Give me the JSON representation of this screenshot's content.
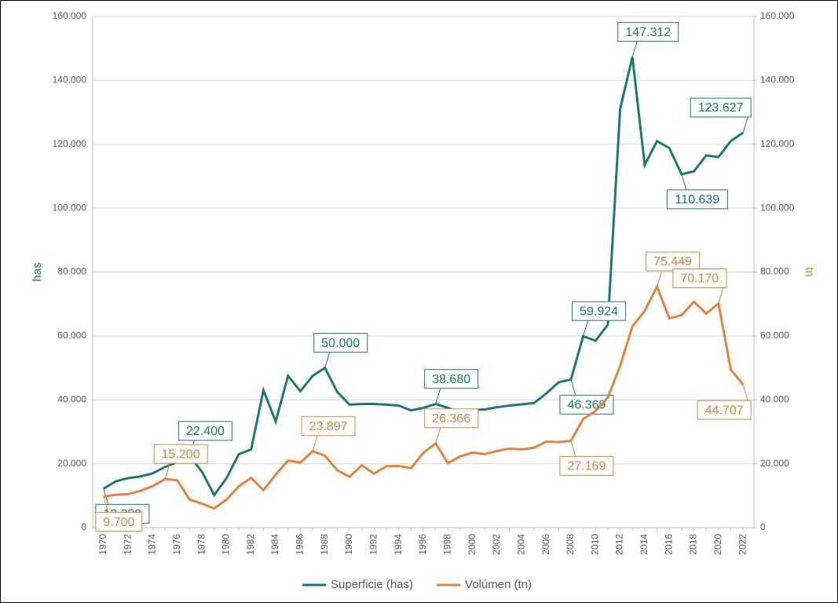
{
  "chart_data": {
    "type": "line",
    "categories": [
      1970,
      null,
      1972,
      null,
      1974,
      null,
      1976,
      null,
      1978,
      null,
      1980,
      null,
      1982,
      null,
      1984,
      null,
      1986,
      null,
      1988,
      null,
      1990,
      null,
      1992,
      null,
      1994,
      null,
      1996,
      null,
      1998,
      null,
      2000,
      null,
      2002,
      null,
      2004,
      null,
      2006,
      null,
      2008,
      null,
      2010,
      null,
      2012,
      null,
      2014,
      null,
      2016,
      null,
      2018,
      null,
      2020,
      null,
      2022
    ],
    "series": [
      {
        "name": "Superficie (has)",
        "color": "#1a7a72",
        "values": [
          12200,
          14500,
          15500,
          16000,
          17000,
          19000,
          20500,
          22400,
          17500,
          10200,
          15500,
          23000,
          24500,
          43000,
          33200,
          47500,
          42700,
          47500,
          50000,
          42500,
          38500,
          38700,
          38700,
          38500,
          38200,
          36700,
          37500,
          38680,
          37500,
          36000,
          36800,
          37000,
          37700,
          38200,
          38600,
          39000,
          42000,
          45500,
          46369,
          59924,
          58500,
          63500,
          131000,
          147312,
          113500,
          121000,
          118800,
          110639,
          111500,
          116500,
          116000,
          121000,
          123627
        ],
        "value_labels": [
          "12.200",
          null,
          null,
          null,
          null,
          null,
          null,
          "22.400",
          null,
          null,
          null,
          null,
          null,
          null,
          null,
          null,
          null,
          null,
          "50.000",
          null,
          null,
          null,
          null,
          null,
          null,
          null,
          null,
          "38.680",
          null,
          null,
          null,
          null,
          null,
          null,
          null,
          null,
          null,
          null,
          "46.369",
          "59.924",
          null,
          null,
          null,
          "147.312",
          null,
          null,
          null,
          "110.639",
          null,
          null,
          null,
          null,
          "123.627"
        ]
      },
      {
        "name": "Volúmen (tn)",
        "color": "#e8823a",
        "axis": "y2",
        "values": [
          9700,
          10300,
          10500,
          11500,
          13000,
          15200,
          14800,
          8800,
          7500,
          6000,
          8800,
          12900,
          15600,
          11700,
          16600,
          21000,
          20300,
          23897,
          22500,
          18000,
          15900,
          19500,
          16900,
          19200,
          19300,
          18600,
          23400,
          26366,
          20200,
          22300,
          23500,
          23000,
          24000,
          24700,
          24500,
          25000,
          26900,
          26800,
          27169,
          34000,
          36500,
          40700,
          50600,
          63000,
          67800,
          75449,
          65500,
          66500,
          70700,
          67000,
          70170,
          49500,
          44707
        ],
        "value_labels": [
          "9.700",
          null,
          null,
          null,
          null,
          "15.200",
          null,
          null,
          null,
          null,
          null,
          null,
          null,
          null,
          null,
          null,
          null,
          "23.897",
          null,
          null,
          null,
          null,
          null,
          null,
          null,
          null,
          null,
          "26.366",
          null,
          null,
          null,
          null,
          null,
          null,
          null,
          null,
          null,
          null,
          "27.169",
          null,
          null,
          null,
          null,
          null,
          null,
          "75.449",
          null,
          null,
          null,
          null,
          "70.170",
          null,
          "44.707"
        ]
      }
    ],
    "y_label": "has",
    "y2_label": "tn",
    "ylim": [
      0,
      160000
    ],
    "yticks": [
      0,
      {
        "value": 20000,
        "label": "20.000"
      },
      {
        "value": 40000,
        "label": "40.000"
      },
      {
        "value": 60000,
        "label": "60.000"
      },
      {
        "value": 80000,
        "label": "80.000"
      },
      {
        "value": 100000,
        "label": "100.000"
      },
      {
        "value": 120000,
        "label": "120.000"
      },
      {
        "value": 140000,
        "label": "140.000"
      },
      {
        "value": 160000,
        "label": "160.000"
      }
    ],
    "y2lim": [
      0,
      160000
    ],
    "y2ticks": [
      0,
      {
        "value": 20000,
        "label": "20.000"
      },
      {
        "value": 40000,
        "label": "40.000"
      },
      {
        "value": 60000,
        "label": "60.000"
      },
      {
        "value": 80000,
        "label": "80.000"
      },
      {
        "value": 100000,
        "label": "100.000"
      },
      {
        "value": 120000,
        "label": "120.000"
      },
      {
        "value": 140000,
        "label": "140.000"
      },
      {
        "value": 160000,
        "label": "160.000"
      }
    ],
    "grid": true,
    "legend": "bottom"
  }
}
